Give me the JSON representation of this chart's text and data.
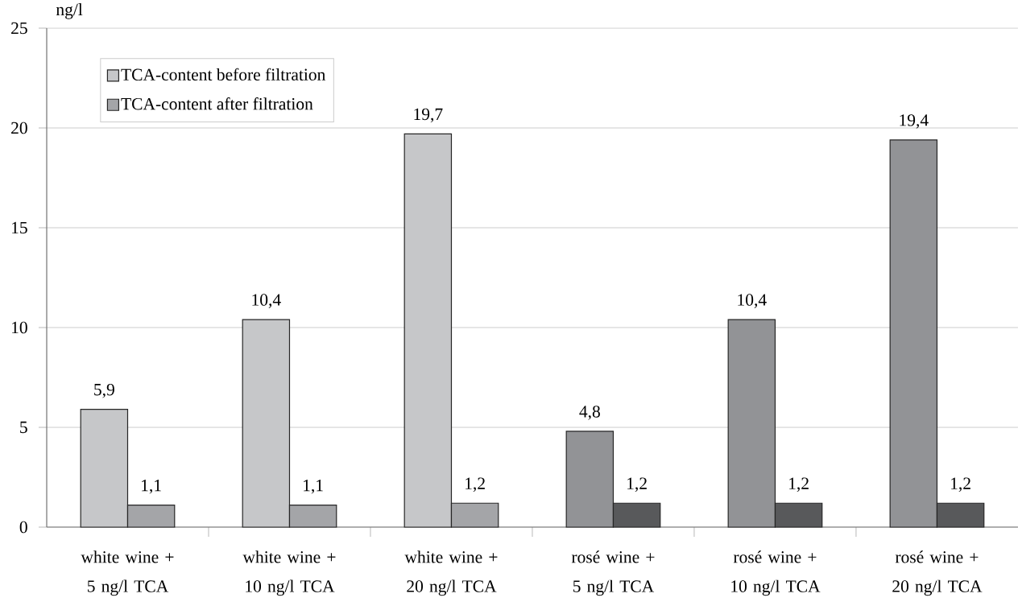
{
  "chart_data": {
    "type": "bar",
    "ylabel": "ng/l",
    "categories": [
      "white wine + 5 ng/l TCA",
      "white wine + 10 ng/l TCA",
      "white wine + 20 ng/l TCA",
      "rosé wine + 5 ng/l TCA",
      "rosé wine + 10 ng/l TCA",
      "rosé wine + 20 ng/l TCA"
    ],
    "series": [
      {
        "name": "TCA-content before filtration",
        "color": "#c6c7c9",
        "colors": [
          "#c6c7c9",
          "#c6c7c9",
          "#c6c7c9",
          "#929396",
          "#929396",
          "#929396"
        ],
        "values": [
          5.9,
          10.4,
          19.7,
          4.8,
          10.4,
          19.4
        ],
        "value_labels": [
          "5,9",
          "10,4",
          "19,7",
          "4,8",
          "10,4",
          "19,4"
        ]
      },
      {
        "name": "TCA-content after filtration",
        "color": "#a4a5a8",
        "colors": [
          "#a4a5a8",
          "#a4a5a8",
          "#a4a5a8",
          "#58595b",
          "#58595b",
          "#58595b"
        ],
        "values": [
          1.1,
          1.1,
          1.2,
          1.2,
          1.2,
          1.2
        ],
        "value_labels": [
          "1,1",
          "1,1",
          "1,2",
          "1,2",
          "1,2",
          "1,2"
        ]
      }
    ],
    "ylim": [
      0,
      25
    ],
    "yticks": [
      0,
      5,
      10,
      15,
      20,
      25
    ],
    "grid": "y",
    "legend": "top left"
  }
}
